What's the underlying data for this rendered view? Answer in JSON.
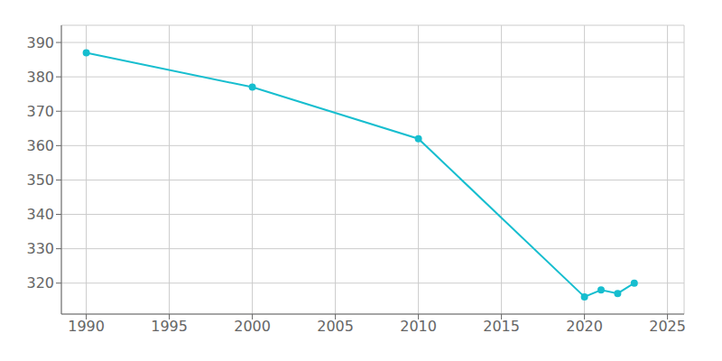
{
  "chart_data": {
    "type": "line",
    "x": [
      1990,
      2000,
      2010,
      2020,
      2021,
      2022,
      2023
    ],
    "values": [
      387,
      377,
      362,
      316,
      318,
      317,
      320
    ],
    "color": "#17becf",
    "marker": "circle",
    "xlim": [
      1988.5,
      2026
    ],
    "ylim": [
      311,
      395
    ],
    "xticks": [
      1990,
      1995,
      2000,
      2005,
      2010,
      2015,
      2020,
      2025
    ],
    "yticks": [
      320,
      330,
      340,
      350,
      360,
      370,
      380,
      390
    ],
    "grid": true
  }
}
